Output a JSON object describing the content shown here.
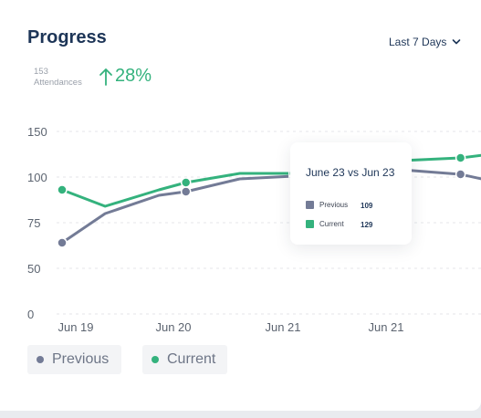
{
  "header": {
    "title": "Progress",
    "range_label": "Last 7 Days"
  },
  "stat": {
    "count": "153",
    "count_label": "Attendances",
    "change": "28%"
  },
  "tooltip": {
    "title": "June 23 vs Jun 23",
    "rows": [
      {
        "label": "Previous",
        "value": "109"
      },
      {
        "label": "Current",
        "value": "129"
      }
    ]
  },
  "legend": [
    {
      "label": "Previous"
    },
    {
      "label": "Current"
    }
  ],
  "colors": {
    "previous": "#737b96",
    "current": "#34b27d",
    "title": "#1d3557",
    "grid": "#e4e6ea"
  },
  "chart_data": {
    "type": "line",
    "title": "",
    "xlabel": "",
    "ylabel": "",
    "ylim": [
      0,
      150
    ],
    "y_ticks": [
      0,
      50,
      75,
      100,
      150
    ],
    "x_ticks": [
      "Jun 19",
      "Jun 20",
      "Jun 21",
      "Jun 21"
    ],
    "grid": true,
    "legend_position": "bottom-left",
    "x": [
      0,
      0.8,
      1.8,
      2.3,
      3.3,
      4.3,
      5.3,
      6.3,
      7.4,
      8.1
    ],
    "series": [
      {
        "name": "Previous",
        "values": [
          64,
          80,
          90,
          92,
          99,
          101,
          106,
          108,
          103,
          97
        ],
        "marker_indices": [
          0,
          3,
          5,
          8
        ]
      },
      {
        "name": "Current",
        "values": [
          93,
          84,
          93,
          97,
          104,
          104,
          112,
          118,
          121,
          126
        ],
        "marker_indices": [
          0,
          3,
          5,
          8
        ]
      }
    ]
  }
}
